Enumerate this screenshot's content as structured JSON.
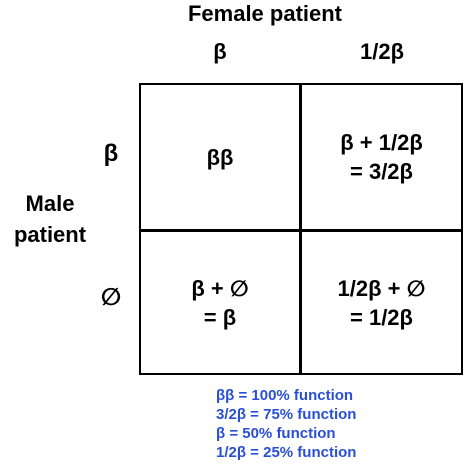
{
  "female_header": "Female patient",
  "female_alleles": [
    "β",
    "1/2β"
  ],
  "male_header": [
    "Male",
    "patient"
  ],
  "male_alleles": [
    "β",
    "∅"
  ],
  "cells": {
    "r1c1": [
      "ββ"
    ],
    "r1c2": [
      "β + 1/2β",
      "= 3/2β"
    ],
    "r2c1": [
      "β + ∅",
      "= β"
    ],
    "r2c2": [
      "1/2β + ∅",
      "= 1/2β"
    ]
  },
  "legend": [
    "ββ = 100% function",
    "3/2β = 75% function",
    "β = 50% function",
    "1/2β = 25% function"
  ],
  "colors": {
    "legend_text": "#2a4fd6",
    "grid_lines": "#000000"
  }
}
